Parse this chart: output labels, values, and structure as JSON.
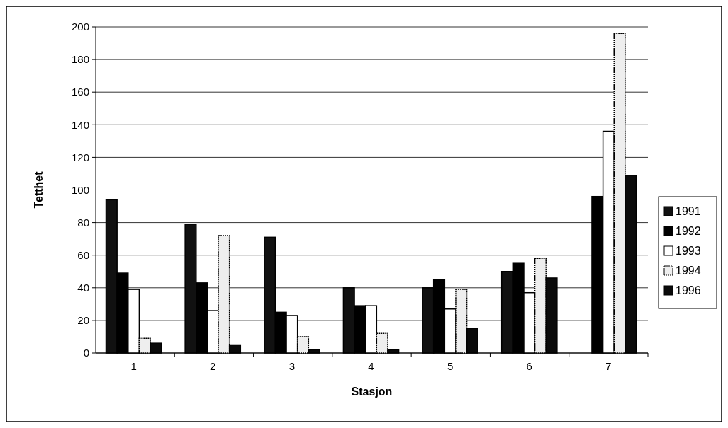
{
  "chart_data": {
    "type": "bar",
    "xlabel": "Stasjon",
    "ylabel": "Tetthet",
    "categories": [
      "1",
      "2",
      "3",
      "4",
      "5",
      "6",
      "7"
    ],
    "series": [
      {
        "name": "1991",
        "color": "#111111",
        "values": [
          94,
          79,
          71,
          40,
          40,
          50,
          null
        ]
      },
      {
        "name": "1992",
        "color": "#000000",
        "values": [
          49,
          43,
          25,
          29,
          45,
          55,
          96
        ]
      },
      {
        "name": "1993",
        "color": "#ffffff",
        "values": [
          39,
          26,
          23,
          29,
          27,
          37,
          136
        ]
      },
      {
        "name": "1994",
        "color": "#eeeeee",
        "values": [
          9,
          72,
          10,
          12,
          39,
          58,
          196
        ]
      },
      {
        "name": "1996",
        "color": "#0a0a0a",
        "values": [
          6,
          5,
          2,
          2,
          15,
          46,
          109
        ]
      }
    ],
    "ylim": [
      0,
      200
    ],
    "yticks": [
      0,
      20,
      40,
      60,
      80,
      100,
      120,
      140,
      160,
      180,
      200
    ],
    "grid": "y",
    "legend": "right"
  }
}
